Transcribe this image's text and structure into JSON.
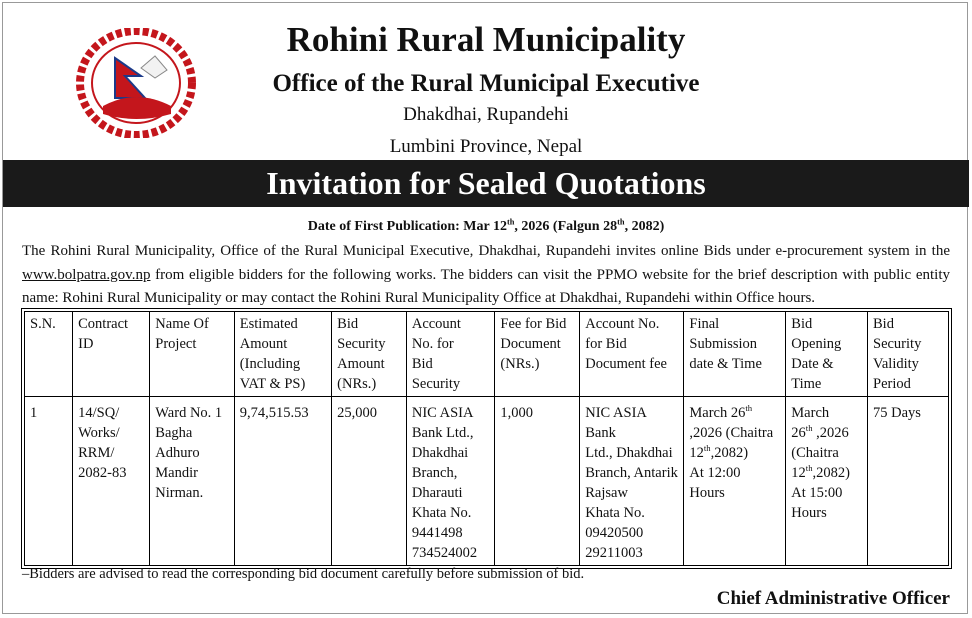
{
  "header": {
    "title": "Rohini Rural Municipality",
    "subtitle": "Office of the Rural Municipal Executive",
    "address_lines": [
      "Dhakdhai, Rupandehi",
      "Lumbini Province, Nepal"
    ]
  },
  "banner": "Invitation for Sealed Quotations",
  "publication_date": [
    "Date of First Publication: Mar 12",
    {
      "sup": "th"
    },
    ", 2026 (Falgun 28",
    {
      "sup": "th"
    },
    ", 2082)"
  ],
  "notice": [
    "The  Rohini Rural Municipality, Office of the Rural Municipal Executive, Dhakdhai, Rupandehi invites online Bids under e-procurement system in the ",
    "www.bolpatra.gov.np",
    " from eligible bidders for the following works. The bidders can visit the PPMO website for the brief description with public entity name: Rohini Rural Municipality or may contact the Rohini Rural Municipality Office at Dhakdhai, Rupandehi within Office hours."
  ],
  "table": {
    "columns": [
      "S.N.",
      "Contract\nID",
      "Name Of\nProject",
      "Estimated\nAmount\n(Including\nVAT & PS)",
      "Bid\nSecurity\nAmount\n(NRs.)",
      "Account\nNo. for\nBid\nSecurity",
      "Fee for Bid\nDocument\n(NRs.)",
      "Account No.\nfor Bid\nDocument fee",
      "Final\nSubmission\ndate & Time",
      "Bid\nOpening\nDate &\nTime",
      "Bid\nSecurity\nValidity\nPeriod"
    ],
    "rows": [
      [
        "1",
        "14/SQ/\nWorks/\nRRM/\n2082-83",
        "Ward No. 1\nBagha\nAdhuro\nMandir\nNirman.",
        "9,74,515.53",
        "25,000",
        "NIC ASIA\nBank Ltd.,\nDhakdhai\nBranch,\nDharauti\nKhata No.\n 9441498\n734524002",
        "1,000",
        "NIC ASIA Bank\nLtd., Dhakdhai\nBranch, Antarik\nRajsaw\nKhata No.\n09420500\n29211003",
        [
          "March 26",
          {
            "sup": "th"
          },
          "\n,2026 (Chaitra\n12",
          {
            "sup": "th"
          },
          ",2082)\nAt 12:00\nHours"
        ],
        [
          "March\n26",
          {
            "sup": "th"
          },
          " ,2026\n(Chaitra\n12",
          {
            "sup": "th"
          },
          ",2082)\nAt 15:00\nHours"
        ],
        "75 Days"
      ]
    ]
  },
  "footnote": "–Bidders are advised to read the corresponding bid document carefully before submission of bid.",
  "signature": "Chief Administrative Officer"
}
